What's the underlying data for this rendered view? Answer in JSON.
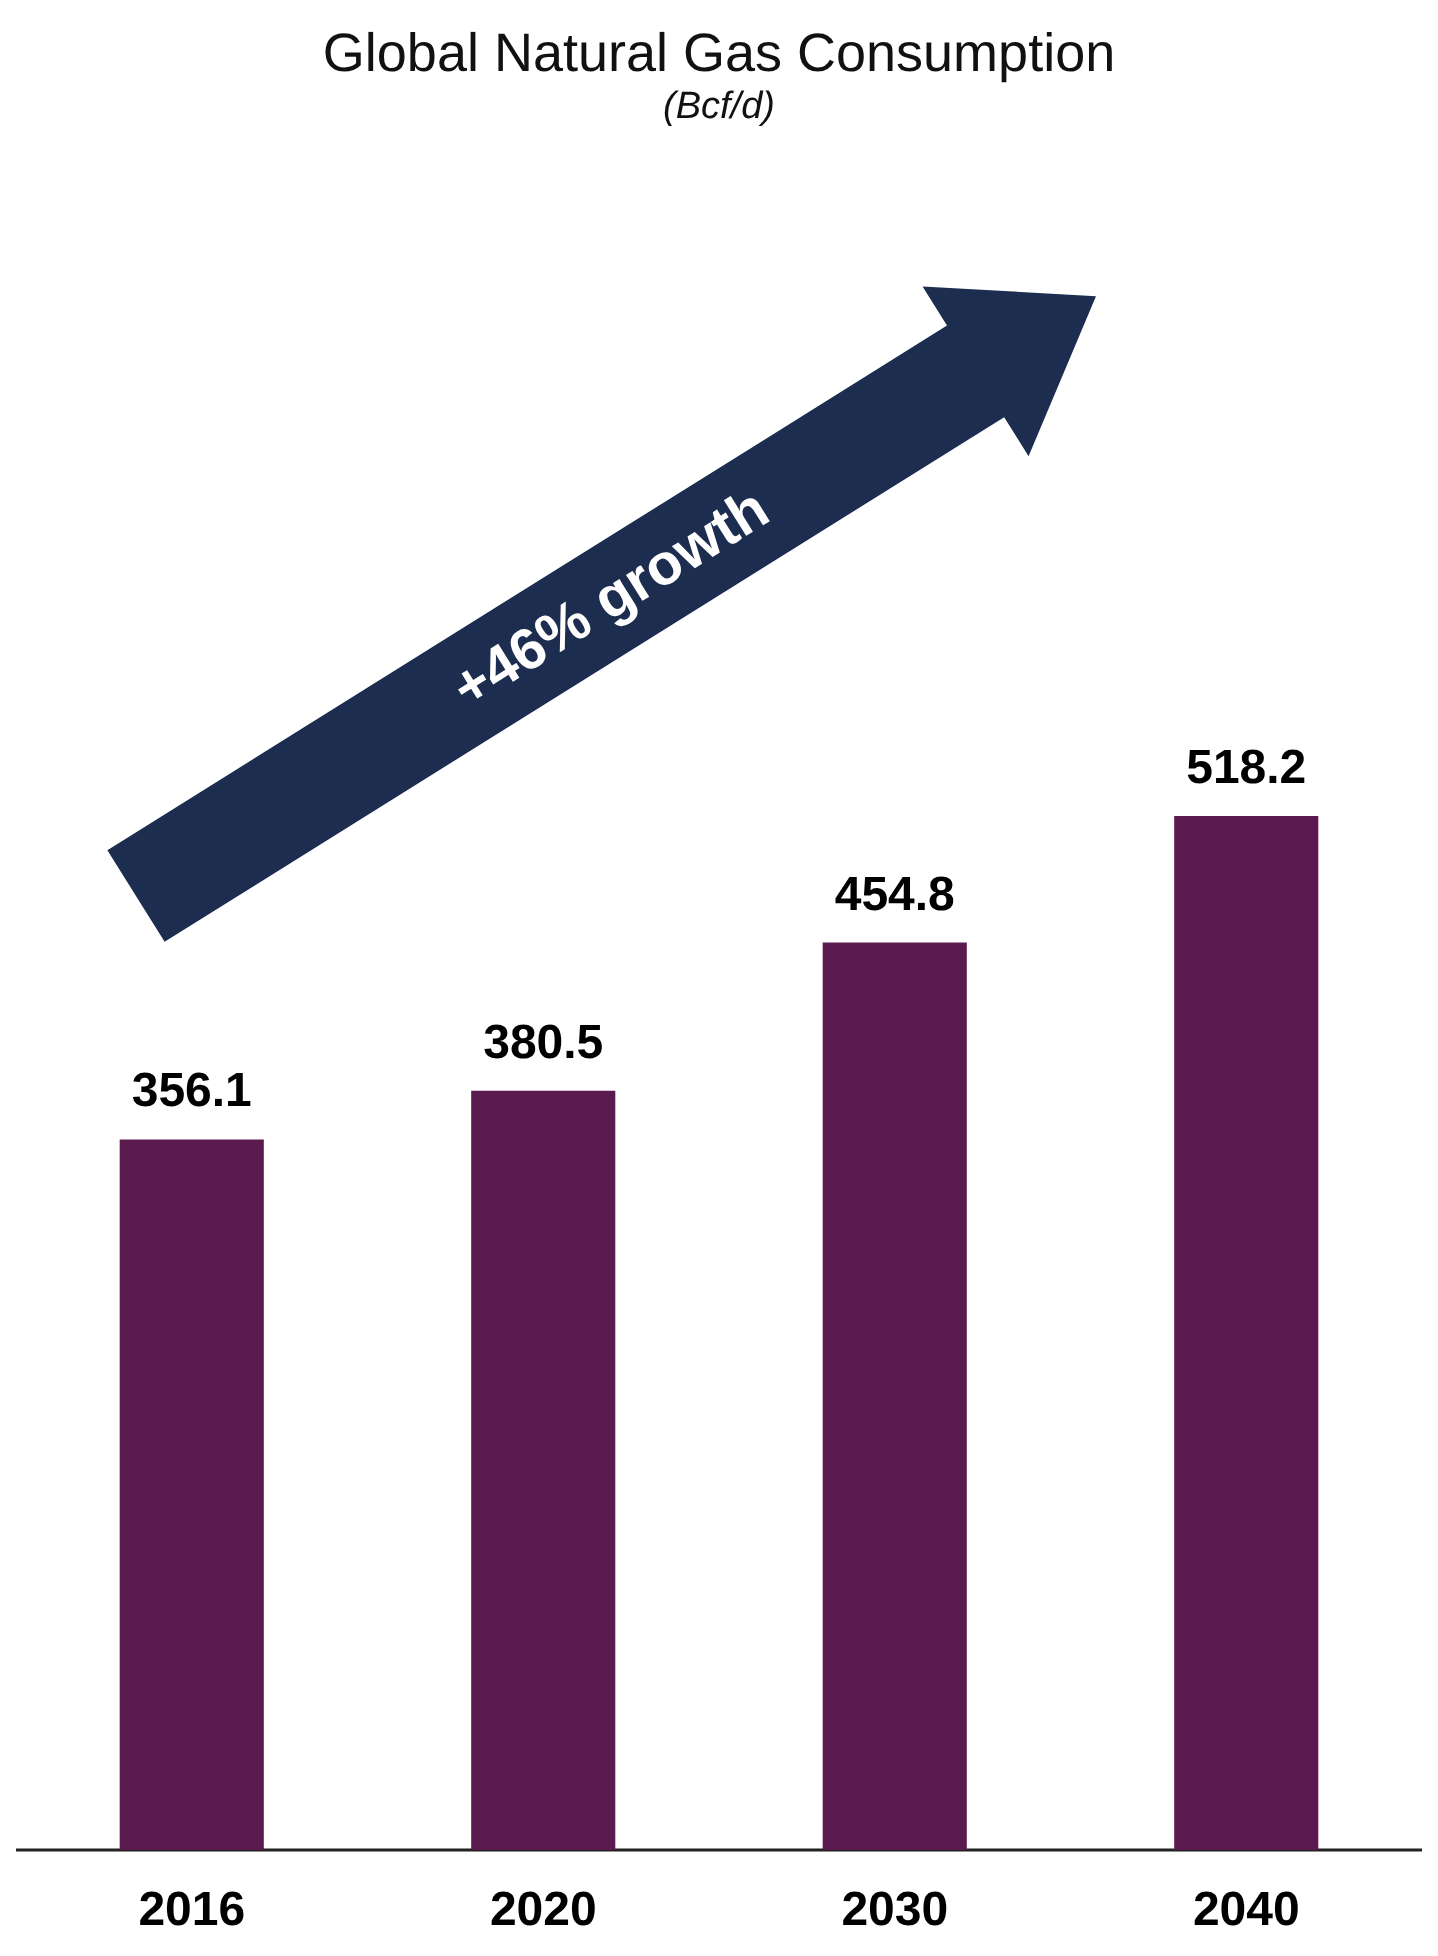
{
  "chart_data": {
    "type": "bar",
    "title": "Global Natural Gas Consumption",
    "subtitle": "(Bcf/d)",
    "categories": [
      "2016",
      "2020",
      "2030",
      "2040"
    ],
    "values": [
      356.1,
      380.5,
      454.8,
      518.2
    ],
    "color": "#5a1a4e",
    "data_labels": true,
    "annotations": [
      "+46% growth"
    ]
  }
}
